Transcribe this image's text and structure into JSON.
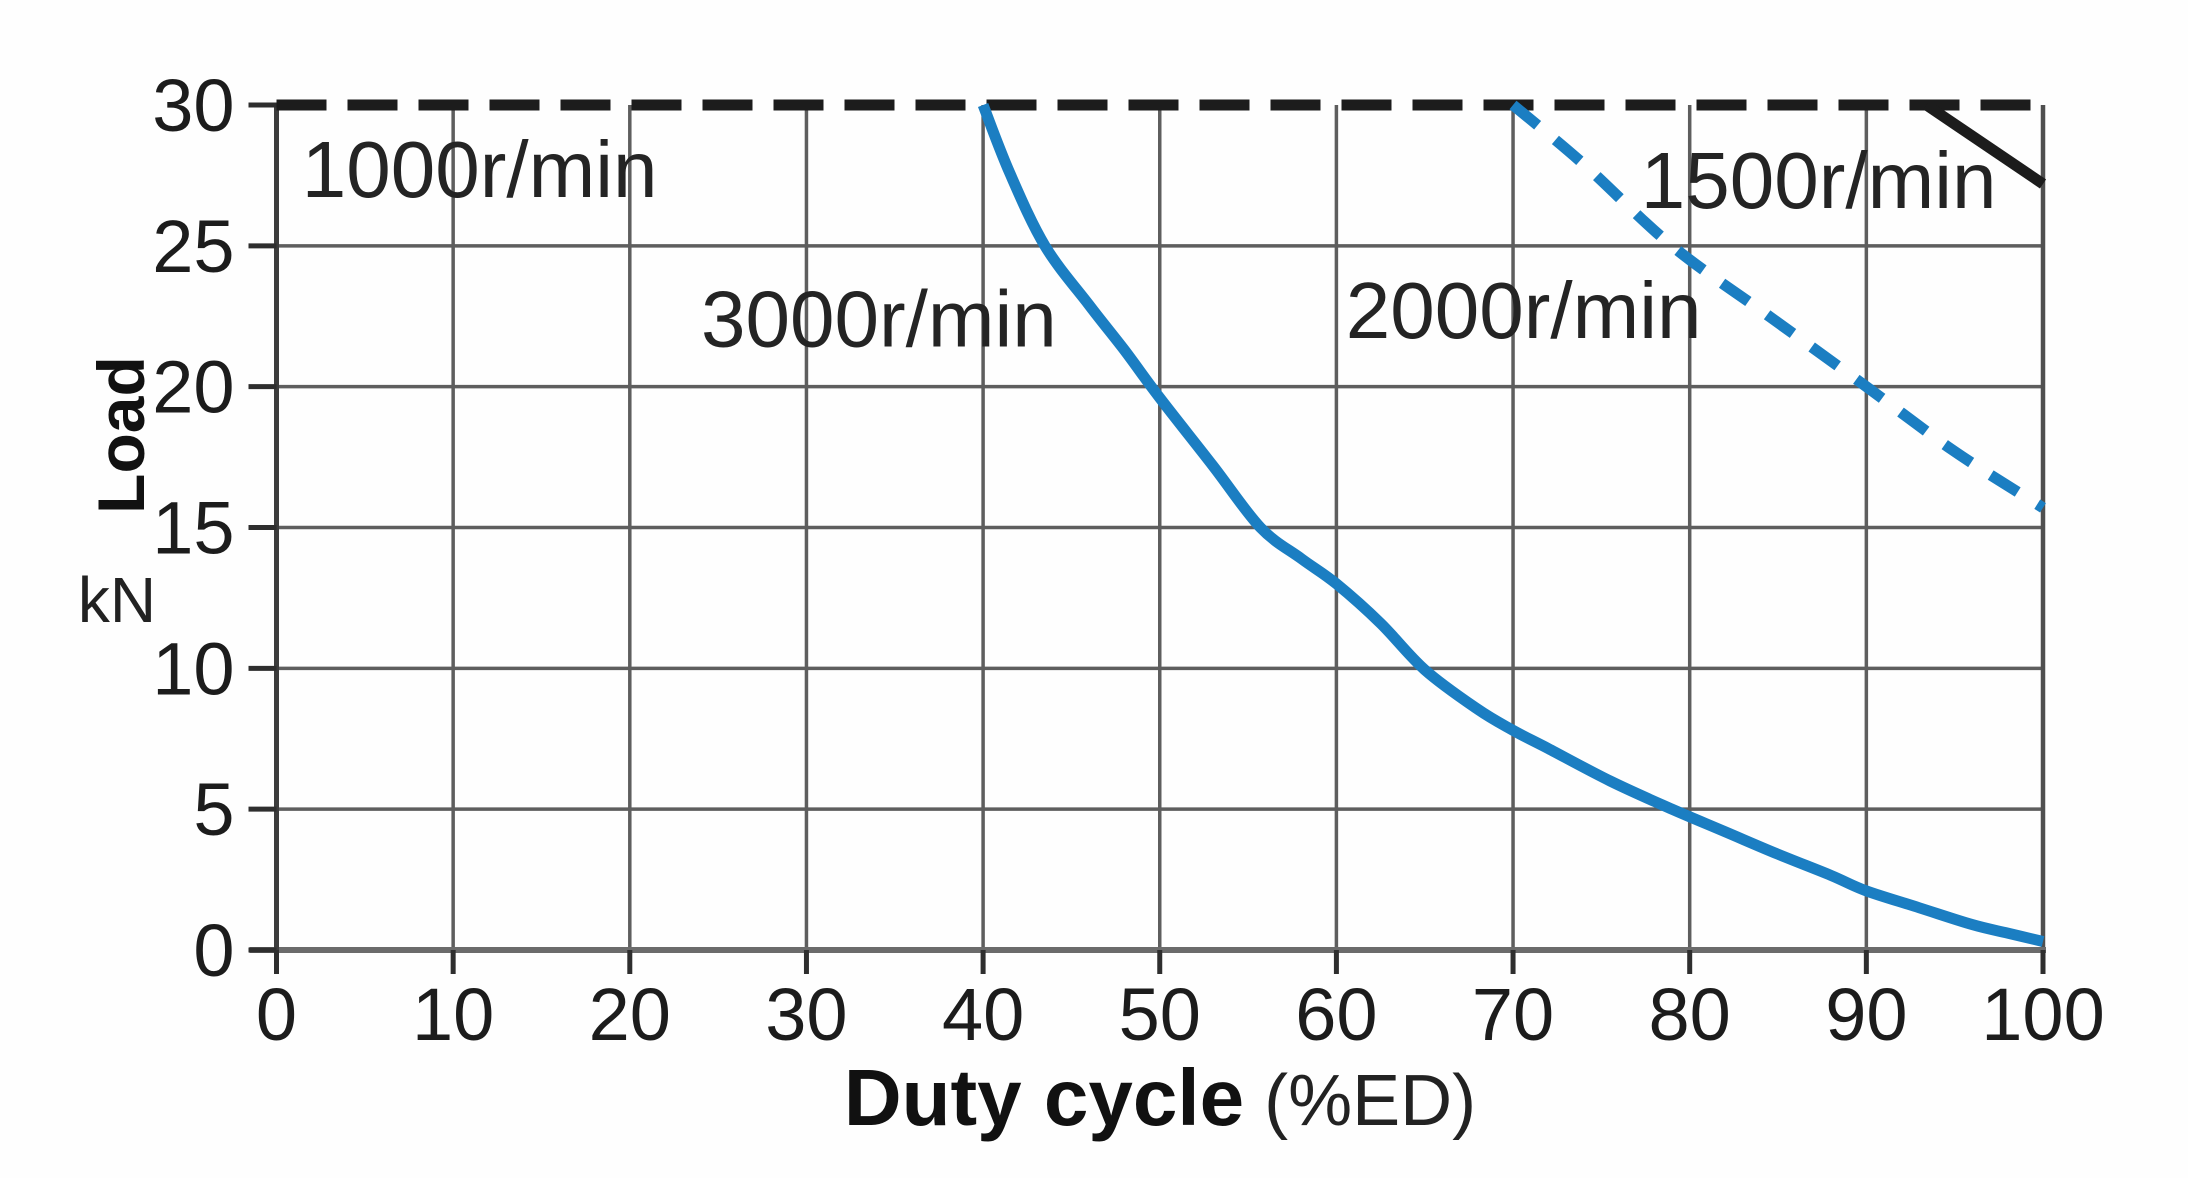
{
  "chart_data": {
    "type": "line",
    "title": "",
    "xlabel": "Duty cycle",
    "xlabel_unit": "(%ED)",
    "ylabel": "Load",
    "ylabel_unit": "kN",
    "xlim": [
      0,
      100
    ],
    "ylim": [
      0,
      30
    ],
    "x_ticks": [
      0,
      10,
      20,
      30,
      40,
      50,
      60,
      70,
      80,
      90,
      100
    ],
    "y_ticks": [
      0,
      5,
      10,
      15,
      20,
      25,
      30
    ],
    "grid": true,
    "legend_position": "inline-labels",
    "colors": {
      "curve_blue": "#1b7ec2",
      "curve_black": "#1c1c1c",
      "grid": "#5e5e5e",
      "axis": "#3c3c3c",
      "border": "#4f4f4f",
      "tick": "#2e2e2e",
      "text": "#1c1c1c",
      "background": "#fefefe"
    },
    "series": [
      {
        "name": "1000r/min",
        "line_style": "dashed",
        "dash": [
          50,
          21
        ],
        "color": "#1c1c1c",
        "label": {
          "text": "1000r/min",
          "x": 11.5,
          "y": 27.8
        },
        "points": [
          [
            0,
            30
          ],
          [
            100,
            30
          ]
        ]
      },
      {
        "name": "1500r/min",
        "line_style": "solid",
        "color": "#1c1c1c",
        "label": {
          "text": "1500r/min",
          "x": 87.3,
          "y": 27.4
        },
        "points": [
          [
            93.4,
            30
          ],
          [
            100,
            27.2
          ]
        ]
      },
      {
        "name": "2000r/min",
        "line_style": "dashed",
        "dash": [
          32,
          23
        ],
        "color": "#1b7ec2",
        "label": {
          "text": "2000r/min",
          "x": 70.6,
          "y": 22.8
        },
        "points": [
          [
            70,
            30
          ],
          [
            74,
            27.9
          ],
          [
            79,
            25
          ],
          [
            84.5,
            22.5
          ],
          [
            90,
            20
          ],
          [
            95,
            17.7
          ],
          [
            100,
            15.7
          ]
        ]
      },
      {
        "name": "3000r/min",
        "line_style": "solid",
        "color": "#1b7ec2",
        "label": {
          "text": "3000r/min",
          "x": 34.1,
          "y": 22.5
        },
        "points": [
          [
            40,
            30
          ],
          [
            41.5,
            27.6
          ],
          [
            43.5,
            25
          ],
          [
            46,
            22.9
          ],
          [
            48,
            21.3
          ],
          [
            50,
            19.6
          ],
          [
            53,
            17.2
          ],
          [
            55.7,
            15
          ],
          [
            58,
            13.9
          ],
          [
            60,
            13.0
          ],
          [
            62.5,
            11.6
          ],
          [
            65,
            9.95
          ],
          [
            68,
            8.55
          ],
          [
            70,
            7.8
          ],
          [
            72,
            7.15
          ],
          [
            75.5,
            6.0
          ],
          [
            79,
            5
          ],
          [
            82,
            4.2
          ],
          [
            85,
            3.4
          ],
          [
            88,
            2.65
          ],
          [
            90,
            2.1
          ],
          [
            93,
            1.5
          ],
          [
            96,
            0.9
          ],
          [
            98,
            0.6
          ],
          [
            100,
            0.3
          ]
        ]
      }
    ]
  }
}
